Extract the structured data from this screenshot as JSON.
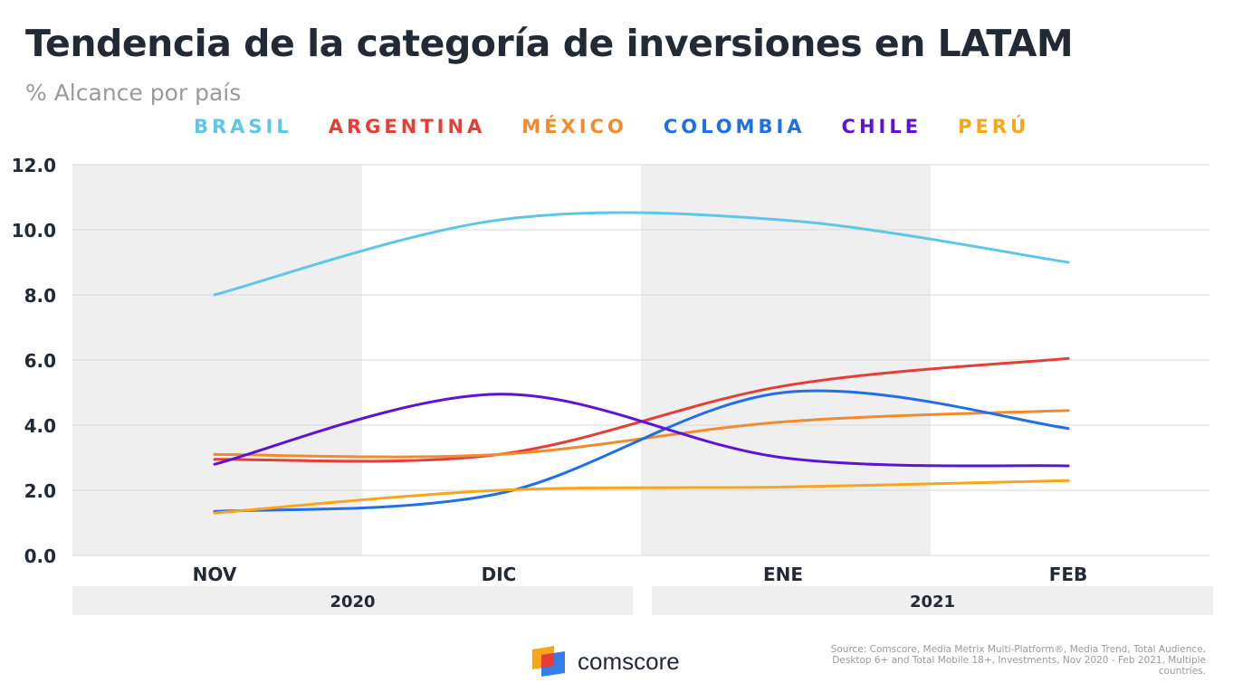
{
  "header": {
    "title": "Tendencia de la categoría de inversiones en LATAM",
    "subtitle": "% Alcance por país"
  },
  "footer": {
    "source": "Source: Comscore, Media Metrix Multi-Platform®, Media Trend, Total Audience, Desktop 6+ and Total Mobile 18+, Investments, Nov 2020 - Feb 2021, Multiple countries.",
    "brand": "comscore"
  },
  "chart_data": {
    "type": "line",
    "title": "Tendencia de la categoría de inversiones en LATAM",
    "subtitle": "% Alcance por país",
    "categories": [
      "NOV",
      "DIC",
      "ENE",
      "FEB"
    ],
    "year_groups": [
      {
        "label": "2020",
        "categories": [
          "NOV",
          "DIC"
        ]
      },
      {
        "label": "2021",
        "categories": [
          "ENE",
          "FEB"
        ]
      }
    ],
    "yticks": [
      "0.0",
      "2.0",
      "4.0",
      "6.0",
      "8.0",
      "10.0",
      "12.0"
    ],
    "ylim": [
      0,
      12
    ],
    "grid": true,
    "legend_position": "top",
    "series": [
      {
        "name": "BRASIL",
        "color": "#5ec6e6",
        "values": [
          8.0,
          10.3,
          10.3,
          9.0
        ]
      },
      {
        "name": "ARGENTINA",
        "color": "#e53e36",
        "values": [
          2.95,
          3.1,
          5.2,
          6.05
        ]
      },
      {
        "name": "MÉXICO",
        "color": "#f28a2e",
        "values": [
          3.1,
          3.1,
          4.1,
          4.45
        ]
      },
      {
        "name": "COLOMBIA",
        "color": "#1e6fe8",
        "values": [
          1.35,
          1.9,
          5.0,
          3.9
        ]
      },
      {
        "name": "CHILE",
        "color": "#5b14d6",
        "values": [
          2.8,
          4.95,
          3.0,
          2.75
        ]
      },
      {
        "name": "PERÚ",
        "color": "#f9a51b",
        "values": [
          1.3,
          2.0,
          2.1,
          2.3
        ]
      }
    ]
  }
}
